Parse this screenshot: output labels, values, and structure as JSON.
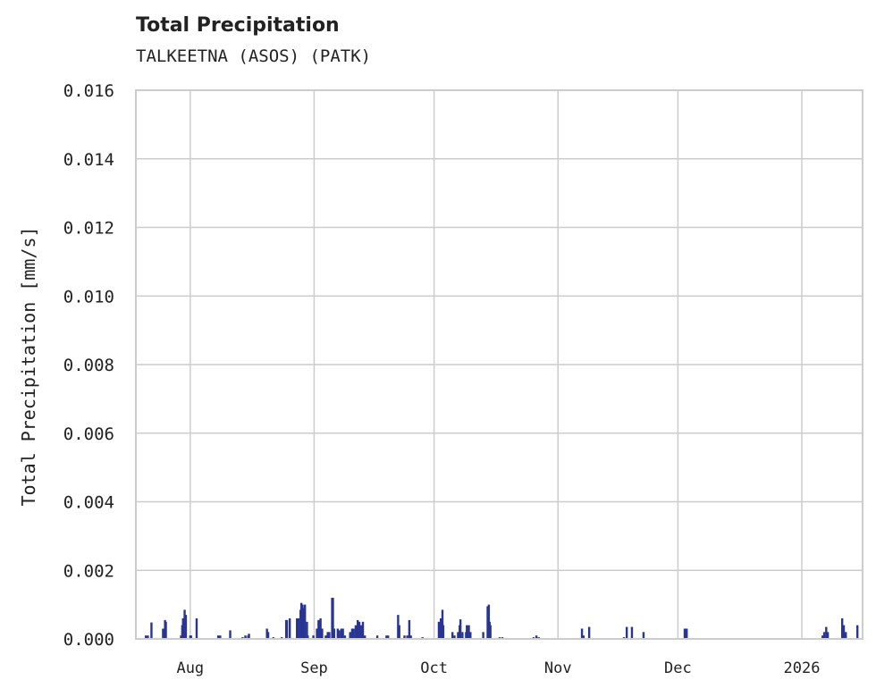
{
  "chart_data": {
    "type": "bar",
    "title": "Total Precipitation",
    "subtitle": "TALKEETNA (ASOS) (PATK)",
    "xlabel": "",
    "ylabel": "Total Precipitation [mm/s]",
    "x_unit": "days since 2025-08-01",
    "xlim": [
      -13.6,
      168.2
    ],
    "ylim": [
      0,
      0.016
    ],
    "grid": true,
    "color": "#283593",
    "yticks": [
      0,
      0.002,
      0.004,
      0.006,
      0.008,
      0.01,
      0.012,
      0.014,
      0.016
    ],
    "ytick_labels": [
      "0.000",
      "0.002",
      "0.004",
      "0.006",
      "0.008",
      "0.010",
      "0.012",
      "0.014",
      "0.016"
    ],
    "xticks": [
      0,
      31,
      61,
      92,
      122,
      153
    ],
    "xtick_labels": [
      "Aug",
      "Sep",
      "Oct",
      "Nov",
      "Dec",
      "2026"
    ],
    "points": [
      [
        -11.1,
        0.0001
      ],
      [
        -10.6,
        0.0001
      ],
      [
        -9.7,
        0.00048
      ],
      [
        -6.8,
        0.0003
      ],
      [
        -6.3,
        0.00055
      ],
      [
        -6.1,
        0.0005
      ],
      [
        -2.3,
        0.0001
      ],
      [
        -2.0,
        0.0004
      ],
      [
        -1.8,
        0.0006
      ],
      [
        -1.4,
        0.00085
      ],
      [
        -1.1,
        0.0007
      ],
      [
        0,
        0.0001
      ],
      [
        0.2,
        0.0001
      ],
      [
        1.6,
        0.0006
      ],
      [
        7.0,
        0.0001
      ],
      [
        7.5,
        0.0001
      ],
      [
        10.0,
        0.00025
      ],
      [
        13.1,
        5e-05
      ],
      [
        13.8,
        0.0001
      ],
      [
        14.5,
        0.0001
      ],
      [
        14.7,
        0.00015
      ],
      [
        19.2,
        0.0003
      ],
      [
        19.5,
        0.0002
      ],
      [
        20.8,
        5e-05
      ],
      [
        22.9,
        5e-05
      ],
      [
        24.0,
        0.00055
      ],
      [
        24.2,
        0.00055
      ],
      [
        24.9,
        0.0006
      ],
      [
        26.7,
        0.0006
      ],
      [
        27.1,
        0.0006
      ],
      [
        27.6,
        0.00085
      ],
      [
        27.8,
        0.00105
      ],
      [
        28.1,
        0.001
      ],
      [
        28.5,
        0.0009
      ],
      [
        28.7,
        0.001
      ],
      [
        29.2,
        0.0005
      ],
      [
        29.4,
        0.0001
      ],
      [
        30.8,
        0.0001
      ],
      [
        31.7,
        0.0003
      ],
      [
        32.1,
        0.00055
      ],
      [
        32.6,
        0.0006
      ],
      [
        33.0,
        0.0003
      ],
      [
        33.9,
        0.0001
      ],
      [
        34.4,
        0.0002
      ],
      [
        34.8,
        0.0002
      ],
      [
        35.5,
        0.0012
      ],
      [
        35.7,
        0.0012
      ],
      [
        36.0,
        0.0003
      ],
      [
        36.9,
        0.0003
      ],
      [
        37.3,
        0.00025
      ],
      [
        37.8,
        0.0003
      ],
      [
        38.2,
        0.0003
      ],
      [
        38.7,
        0.0001
      ],
      [
        40.0,
        0.0002
      ],
      [
        40.5,
        0.0003
      ],
      [
        40.9,
        0.0003
      ],
      [
        41.4,
        0.0004
      ],
      [
        41.9,
        0.00055
      ],
      [
        42.3,
        0.0005
      ],
      [
        42.8,
        0.0004
      ],
      [
        43.2,
        0.0005
      ],
      [
        43.7,
        0.0001
      ],
      [
        46.8,
        0.0001
      ],
      [
        49.1,
        0.0001
      ],
      [
        49.5,
        0.0001
      ],
      [
        52.0,
        0.0007
      ],
      [
        52.3,
        0.0004
      ],
      [
        53.6,
        0.0001
      ],
      [
        54.3,
        0.0001
      ],
      [
        54.8,
        0.00055
      ],
      [
        55.2,
        0.0001
      ],
      [
        58.1,
        5e-05
      ],
      [
        62.2,
        0.0005
      ],
      [
        62.7,
        0.0006
      ],
      [
        63.1,
        0.00085
      ],
      [
        63.3,
        0.0004
      ],
      [
        65.6,
        0.0002
      ],
      [
        66.1,
        0.0001
      ],
      [
        67.0,
        0.0002
      ],
      [
        67.4,
        0.0004
      ],
      [
        67.6,
        0.00057
      ],
      [
        68.1,
        0.0002
      ],
      [
        69.0,
        0.0002
      ],
      [
        69.2,
        0.0004
      ],
      [
        69.7,
        0.0004
      ],
      [
        70.1,
        0.0002
      ],
      [
        73.3,
        0.0002
      ],
      [
        74.4,
        0.00095
      ],
      [
        74.7,
        0.001
      ],
      [
        74.9,
        0.0005
      ],
      [
        75.1,
        0.0004
      ],
      [
        77.4,
        5e-05
      ],
      [
        78.1,
        5e-05
      ],
      [
        85.9,
        5e-05
      ],
      [
        86.6,
        0.0001
      ],
      [
        87.2,
        5e-05
      ],
      [
        98.0,
        0.0003
      ],
      [
        98.4,
        0.0001
      ],
      [
        99.8,
        0.00035
      ],
      [
        108.5,
        5e-05
      ],
      [
        109.2,
        0.00035
      ],
      [
        110.5,
        0.00035
      ],
      [
        113.4,
        0.0002
      ],
      [
        123.7,
        0.0003
      ],
      [
        124.2,
        0.0003
      ],
      [
        158.2,
        0.0001
      ],
      [
        158.6,
        0.0002
      ],
      [
        159.1,
        0.00035
      ],
      [
        159.5,
        0.0002
      ],
      [
        163.1,
        0.0006
      ],
      [
        163.5,
        0.0004
      ],
      [
        164.0,
        0.0002
      ],
      [
        166.9,
        0.0004
      ]
    ]
  }
}
